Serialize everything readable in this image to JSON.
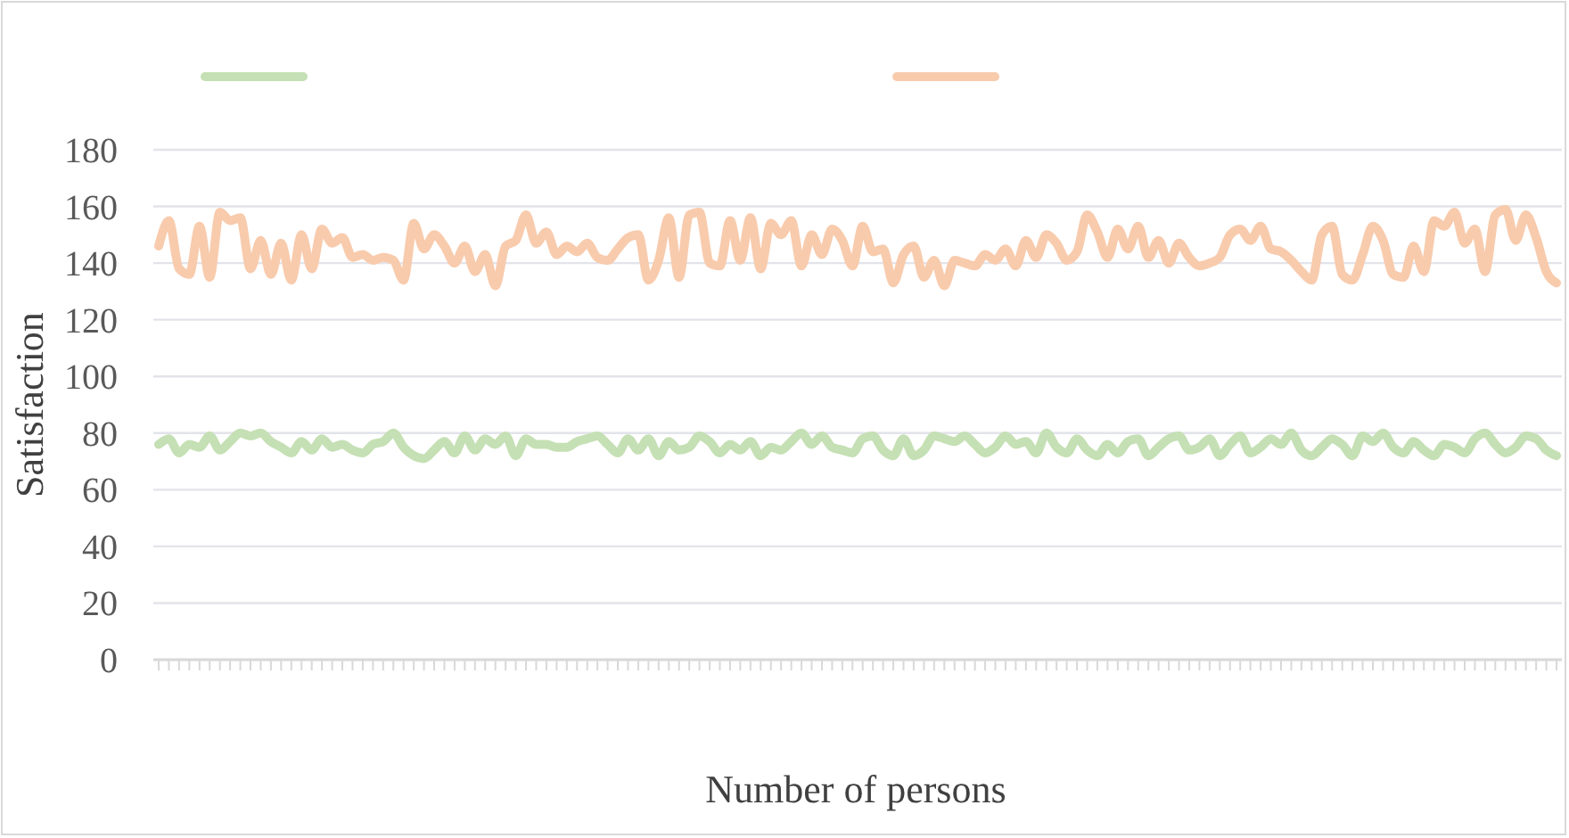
{
  "chart_data": {
    "type": "line",
    "xlabel": "Number of persons",
    "ylabel": "Satisfaction",
    "categories": [
      null,
      null,
      null,
      null,
      null,
      null,
      null,
      null,
      null,
      null,
      null,
      null,
      null,
      null,
      null,
      null,
      null,
      null,
      null,
      null,
      null,
      null,
      null,
      null,
      null,
      null,
      null,
      null,
      null,
      null,
      null,
      null,
      null,
      null,
      null,
      null,
      null,
      null,
      null,
      null,
      null,
      null,
      null,
      null,
      null,
      null,
      null,
      null,
      null,
      null,
      null,
      null,
      null,
      null,
      null,
      null,
      null,
      null,
      null,
      null,
      null,
      null,
      null,
      null,
      null,
      null,
      null,
      null,
      null,
      null,
      null,
      null,
      null,
      null,
      null,
      null,
      null,
      null,
      null,
      null,
      null,
      null,
      null,
      null,
      null,
      null,
      null,
      null,
      null,
      null,
      null,
      null,
      null,
      null,
      null,
      null,
      null,
      null,
      null,
      null,
      null,
      null,
      null,
      null,
      null,
      null,
      null,
      null,
      null,
      null,
      null,
      null,
      null,
      null,
      null,
      null,
      null,
      null,
      null,
      null,
      null,
      null,
      null,
      null,
      null,
      null,
      null,
      null,
      null,
      null,
      null,
      null,
      null,
      null,
      null,
      null,
      null,
      null
    ],
    "series": [
      {
        "color": "#c5e0b4",
        "values": [
          76,
          78,
          73,
          76,
          75,
          79,
          74,
          77,
          80,
          79,
          80,
          77,
          75,
          73,
          77,
          74,
          78,
          75,
          76,
          74,
          73,
          76,
          77,
          80,
          75,
          72,
          71,
          74,
          77,
          73,
          79,
          74,
          78,
          76,
          79,
          72,
          78,
          76,
          76,
          75,
          75,
          77,
          78,
          79,
          76,
          73,
          78,
          74,
          78,
          72,
          77,
          74,
          75,
          79,
          77,
          73,
          76,
          74,
          77,
          72,
          75,
          74,
          77,
          80,
          76,
          79,
          75,
          74,
          73,
          78,
          79,
          74,
          72,
          78,
          72,
          74,
          79,
          78,
          77,
          79,
          76,
          73,
          75,
          79,
          76,
          77,
          73,
          80,
          75,
          73,
          78,
          74,
          72,
          76,
          73,
          77,
          78,
          72,
          75,
          78,
          79,
          74,
          75,
          78,
          72,
          76,
          79,
          73,
          75,
          78,
          76,
          80,
          74,
          72,
          75,
          78,
          76,
          72,
          79,
          77,
          80,
          75,
          73,
          77,
          74,
          72,
          76,
          75,
          73,
          78,
          80,
          76,
          73,
          75,
          79,
          78,
          74,
          72
        ]
      },
      {
        "color": "#f8cbad",
        "values": [
          146,
          155,
          138,
          136,
          153,
          135,
          158,
          155,
          156,
          138,
          148,
          136,
          147,
          134,
          150,
          138,
          152,
          147,
          149,
          142,
          143,
          141,
          142,
          141,
          134,
          154,
          145,
          150,
          146,
          140,
          146,
          137,
          143,
          132,
          146,
          148,
          157,
          147,
          151,
          143,
          146,
          144,
          147,
          142,
          141,
          145,
          149,
          150,
          134,
          141,
          156,
          135,
          157,
          158,
          140,
          139,
          155,
          141,
          156,
          138,
          154,
          150,
          155,
          139,
          150,
          143,
          152,
          148,
          139,
          153,
          144,
          145,
          133,
          143,
          146,
          135,
          141,
          132,
          141,
          140,
          139,
          143,
          141,
          145,
          139,
          148,
          142,
          150,
          147,
          141,
          144,
          157,
          151,
          142,
          152,
          145,
          153,
          142,
          148,
          140,
          147,
          142,
          139,
          140,
          142,
          150,
          152,
          148,
          153,
          145,
          144,
          141,
          137,
          134,
          150,
          153,
          136,
          134,
          143,
          153,
          148,
          136,
          135,
          146,
          137,
          155,
          153,
          158,
          147,
          152,
          137,
          157,
          159,
          148,
          157,
          149,
          137,
          133
        ]
      }
    ],
    "ylim": [
      0,
      180
    ],
    "yticks": [
      0,
      20,
      40,
      60,
      80,
      100,
      120,
      140,
      160,
      180
    ],
    "grid": "y",
    "marker": "none",
    "line_style": "solid"
  }
}
